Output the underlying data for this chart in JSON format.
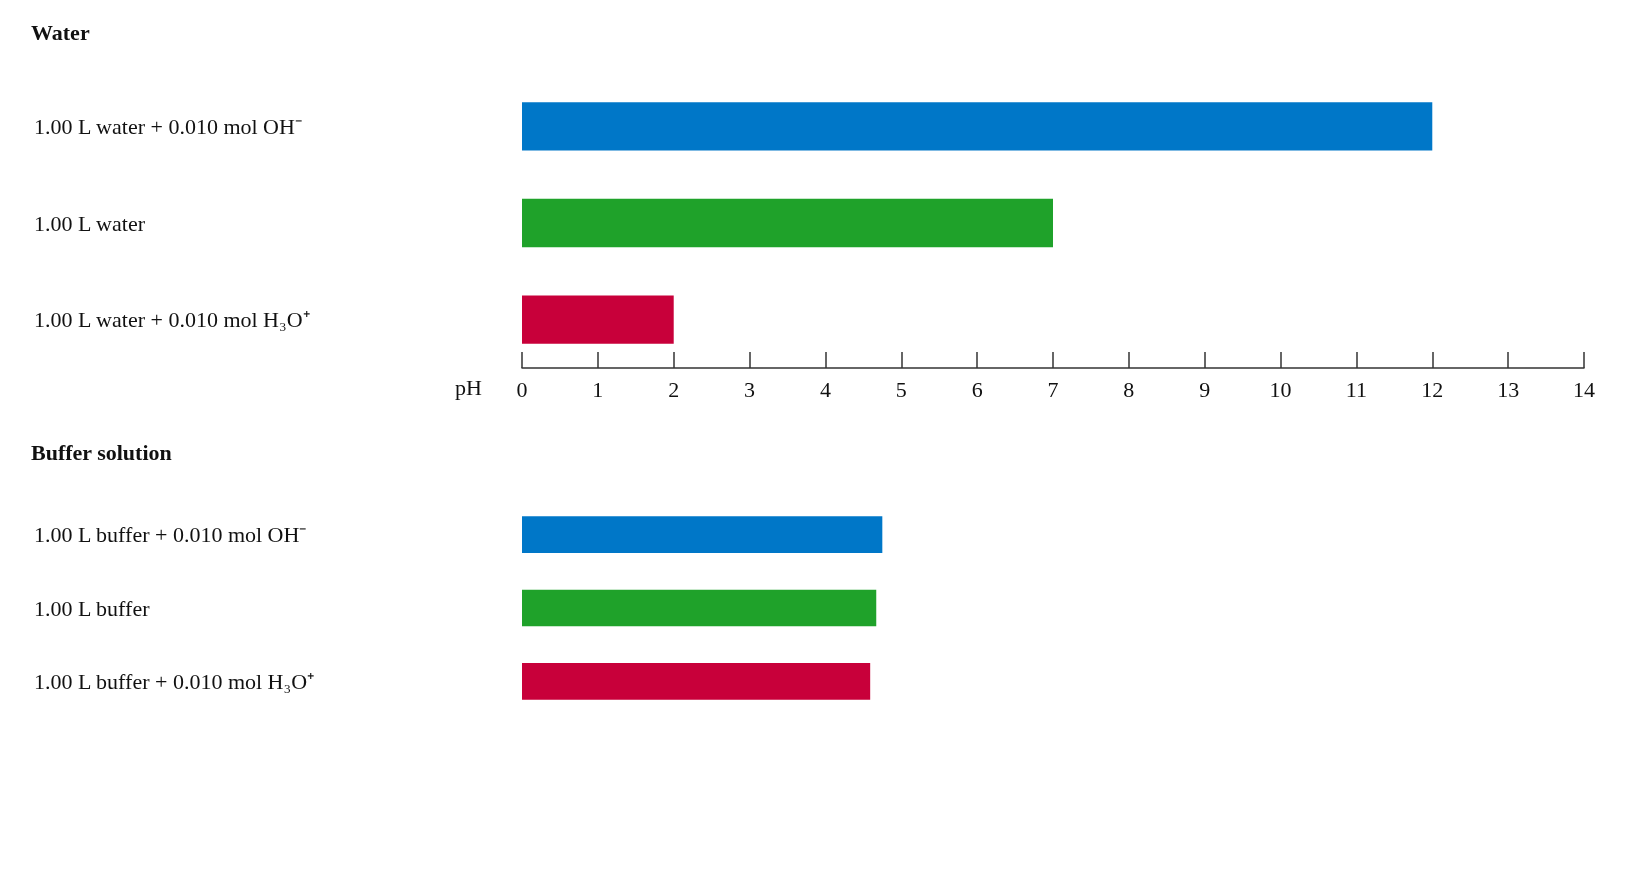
{
  "chart_data": [
    {
      "type": "bar",
      "orientation": "horizontal",
      "title": "Water",
      "xlabel": "pH",
      "categories": [
        "1.00 L water + 0.010 mol OH⁻",
        "1.00 L water",
        "1.00 L water + 0.010 mol H₃O⁺"
      ],
      "values": [
        12.0,
        7.0,
        2.0
      ],
      "colors": [
        "#0077c8",
        "#1fa22a",
        "#c8003a"
      ],
      "xlim": [
        0,
        14
      ],
      "xticks": [
        0,
        1,
        2,
        3,
        4,
        5,
        6,
        7,
        8,
        9,
        10,
        11,
        12,
        13,
        14
      ]
    },
    {
      "type": "bar",
      "orientation": "horizontal",
      "title": "Buffer solution",
      "tick_labels": "y",
      "categories": [
        "1.00 L buffer + 0.010 mol OH⁻",
        "1.00 L buffer",
        "1.00 L buffer + 0.010 mol H₃O⁺"
      ],
      "values": [
        4.75,
        4.67,
        4.59
      ],
      "colors": [
        "#0077c8",
        "#1fa22a",
        "#c8003a"
      ],
      "xlim": [
        0,
        14
      ],
      "xticks": [
        0,
        1,
        2,
        3,
        4,
        5,
        6,
        7,
        8,
        9,
        10,
        11,
        12,
        13,
        14
      ]
    }
  ]
}
